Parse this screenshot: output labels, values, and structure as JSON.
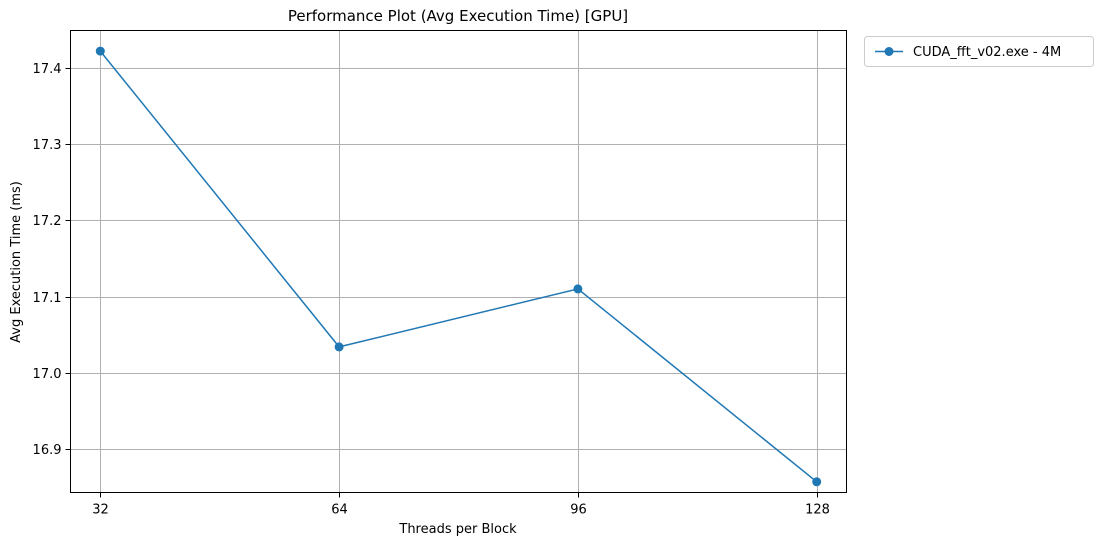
{
  "chart_data": {
    "type": "line",
    "title": "Performance Plot (Avg Execution Time) [GPU]",
    "xlabel": "Threads per Block",
    "ylabel": "Avg Execution Time (ms)",
    "x": [
      32,
      64,
      96,
      128
    ],
    "x_tick_labels": [
      "32",
      "64",
      "96",
      "128"
    ],
    "xlim": [
      28,
      132
    ],
    "ylim": [
      16.843,
      17.449
    ],
    "y_ticks": [
      16.9,
      17.0,
      17.1,
      17.2,
      17.3,
      17.4
    ],
    "y_tick_labels": [
      "16.9",
      "17.0",
      "17.1",
      "17.2",
      "17.3",
      "17.4"
    ],
    "grid": true,
    "legend_position": "outside-top-right",
    "series": [
      {
        "name": "CUDA_fft_v02.exe - 4M",
        "values": [
          17.422,
          17.034,
          17.11,
          16.857
        ],
        "color": "#1f77b4",
        "marker": "circle"
      }
    ]
  }
}
